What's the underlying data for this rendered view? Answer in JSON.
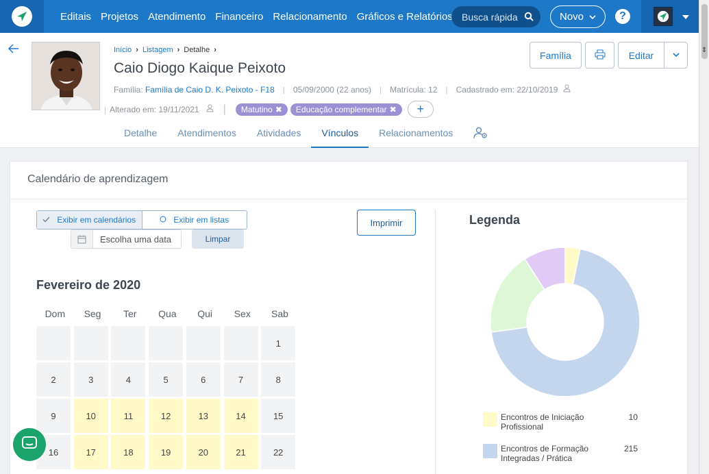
{
  "nav": {
    "items": [
      "Editais",
      "Projetos",
      "Atendimento",
      "Financeiro",
      "Relacionamento",
      "Gráficos e Relatórios"
    ],
    "search_placeholder": "Busca rápida",
    "novo_label": "Novo",
    "help_label": "?"
  },
  "profile": {
    "breadcrumb": [
      "Início",
      "Listagem",
      "Detalhe"
    ],
    "name": "Caio Diogo Kaique Peixoto",
    "familia_label": "Família:",
    "familia_value": "Família de Caio D. K. Peixoto - F18",
    "birth": "05/09/2000 (22 anos)",
    "matricula": "Matrícula: 12",
    "cadastrado": "Cadastrado em: 22/10/2019",
    "alterado": "Alterado em: 19/11/2021",
    "tags": [
      "Matutino",
      "Educação complementar"
    ],
    "add_tag_label": "+"
  },
  "actions": {
    "familia_label": "Família",
    "editar_label": "Editar"
  },
  "tabs": [
    "Detalhe",
    "Atendimentos",
    "Atividades",
    "Vínculos",
    "Relacionamentos"
  ],
  "active_tab": "Vínculos",
  "calendar": {
    "card_title": "Calendário de aprendizagem",
    "view_calendar": "Exibir em calendários",
    "view_list": "Exibir em listas",
    "date_placeholder": "Escolha uma data",
    "limpar_label": "Limpar",
    "imprimir_label": "Imprimir",
    "month": "Fevereiro de 2020",
    "weekdays": [
      "Dom",
      "Seg",
      "Ter",
      "Qua",
      "Qui",
      "Sex",
      "Sab"
    ],
    "weeks": [
      [
        "",
        "",
        "",
        "",
        "",
        "",
        "1"
      ],
      [
        "2",
        "3",
        "4",
        "5",
        "6",
        "7",
        "8"
      ],
      [
        "9",
        "10",
        "11",
        "12",
        "13",
        "14",
        "15"
      ],
      [
        "16",
        "17",
        "18",
        "19",
        "20",
        "21",
        "22"
      ]
    ],
    "highlighted_days": [
      "10",
      "11",
      "12",
      "13",
      "14",
      "17",
      "18",
      "19",
      "20",
      "21"
    ],
    "highlight_color": "#fffac8"
  },
  "legend": {
    "title": "Legenda",
    "entries": [
      {
        "label": "Encontros de Iniciação Profissional",
        "value": "10",
        "color": "#fffac8"
      },
      {
        "label": "Encontros de Formação Integradas / Prática",
        "value": "215",
        "color": "#c4d6ee"
      }
    ]
  },
  "chart_data": {
    "type": "pie",
    "title": "Legenda",
    "slices": [
      {
        "name": "Encontros de Iniciação Profissional",
        "value": 10,
        "color": "#fffac8"
      },
      {
        "name": "Encontros de Formação Integradas / Prática",
        "value": 215,
        "color": "#c4d6ee"
      },
      {
        "name": "",
        "value": 56,
        "color": "#def7d6"
      },
      {
        "name": "",
        "value": 28,
        "color": "#e2caf6"
      }
    ]
  }
}
